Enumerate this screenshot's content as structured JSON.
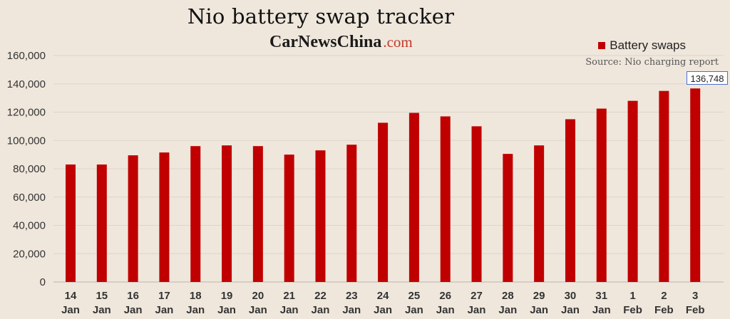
{
  "chart_data": {
    "type": "bar",
    "title": "Nio battery swap tracker",
    "brand": {
      "name": "CarNewsChina",
      "domain": ".com"
    },
    "source": "Source: Nio charging report",
    "legend": [
      "Battery swaps"
    ],
    "legend_position": "top-right",
    "grid": true,
    "bar_color": "#c00000",
    "ylim": [
      0,
      160000
    ],
    "yticks": [
      0,
      20000,
      40000,
      60000,
      80000,
      100000,
      120000,
      140000,
      160000
    ],
    "ytick_labels": [
      "0",
      "20,000",
      "40,000",
      "60,000",
      "80,000",
      "100,000",
      "120,000",
      "140,000",
      "160,000"
    ],
    "categories": [
      [
        "14",
        "Jan"
      ],
      [
        "15",
        "Jan"
      ],
      [
        "16",
        "Jan"
      ],
      [
        "17",
        "Jan"
      ],
      [
        "18",
        "Jan"
      ],
      [
        "19",
        "Jan"
      ],
      [
        "20",
        "Jan"
      ],
      [
        "21",
        "Jan"
      ],
      [
        "22",
        "Jan"
      ],
      [
        "23",
        "Jan"
      ],
      [
        "24",
        "Jan"
      ],
      [
        "25",
        "Jan"
      ],
      [
        "26",
        "Jan"
      ],
      [
        "27",
        "Jan"
      ],
      [
        "28",
        "Jan"
      ],
      [
        "29",
        "Jan"
      ],
      [
        "30",
        "Jan"
      ],
      [
        "31",
        "Jan"
      ],
      [
        "1",
        "Feb"
      ],
      [
        "2",
        "Feb"
      ],
      [
        "3",
        "Feb"
      ]
    ],
    "series": [
      {
        "name": "Battery swaps",
        "values": [
          83000,
          83000,
          89500,
          91500,
          96000,
          96500,
          96000,
          90000,
          93000,
          97000,
          112500,
          119500,
          117000,
          110000,
          90500,
          96500,
          115000,
          122500,
          128000,
          135000,
          136748
        ]
      }
    ],
    "annotation": {
      "label": "136,748",
      "index": 20
    }
  }
}
